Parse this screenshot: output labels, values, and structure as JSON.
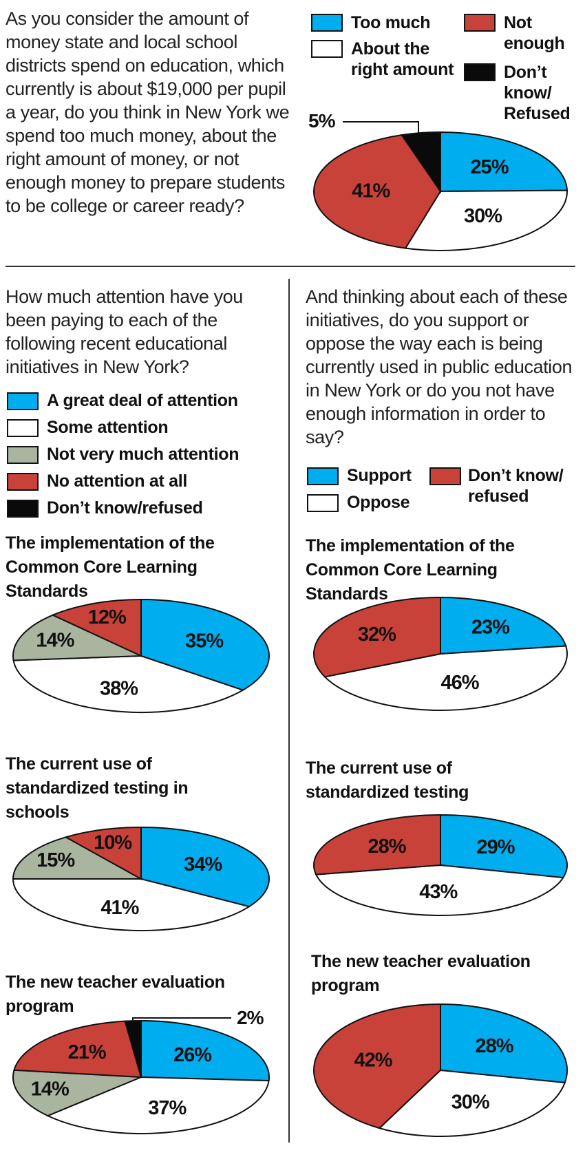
{
  "colors": {
    "blue": "#00aeef",
    "white": "#ffffff",
    "gray": "#aab5a0",
    "red": "#c8423a",
    "black": "#0a0a0a"
  },
  "top": {
    "question": "As you consider the amount of money state and local school districts spend on education, which currently is about $19,000 per pupil a year, do you think in New York we spend too much money, about the right amount of money, or not enough money to prepare students to be college or career ready?",
    "legend": [
      {
        "label": "Too much",
        "color": "blue"
      },
      {
        "label": "About the right amount",
        "color": "white"
      },
      {
        "label": "Not enough",
        "color": "red"
      },
      {
        "label": "Don’t know/ Refused",
        "color": "black"
      }
    ],
    "callout": "5%"
  },
  "left": {
    "question": "How much attention have you been paying to each of the following recent educational initiatives in New York?",
    "legend": [
      {
        "label": "A great deal of attention",
        "color": "blue"
      },
      {
        "label": "Some attention",
        "color": "white"
      },
      {
        "label": "Not very much attention",
        "color": "gray"
      },
      {
        "label": "No attention at all",
        "color": "red"
      },
      {
        "label": "Don’t know/refused",
        "color": "black"
      }
    ],
    "titles": [
      "The implementation of the Common Core Learning Standards",
      "The current use of standardized testing in schools",
      "The new teacher evaluation program"
    ],
    "callout": "2%"
  },
  "right": {
    "question": "And thinking about each of these initiatives, do you support or oppose the way each is being currently used in public education in New York or do you not have enough information in order to say?",
    "legend": [
      {
        "label": "Support",
        "color": "blue"
      },
      {
        "label": "Oppose",
        "color": "white"
      },
      {
        "label": "Don’t know/ refused",
        "color": "red"
      }
    ],
    "titles": [
      "The implementation of the Common Core Learning Standards",
      "The current use of standardized testing",
      "The new teacher evaluation program"
    ]
  },
  "chart_data": [
    {
      "type": "pie",
      "title": "",
      "labels": [
        "Too much",
        "About the right amount",
        "Not enough",
        "Don’t know/ Refused"
      ],
      "values": [
        25,
        30,
        41,
        5
      ],
      "colors": [
        "blue",
        "white",
        "red",
        "black"
      ],
      "display": [
        "25%",
        "30%",
        "41%",
        ""
      ]
    },
    {
      "type": "pie",
      "title": "The implementation of the Common Core Learning Standards",
      "labels": [
        "A great deal of attention",
        "Some attention",
        "Not very much attention",
        "No attention at all"
      ],
      "values": [
        35,
        38,
        14,
        12
      ],
      "colors": [
        "blue",
        "white",
        "gray",
        "red"
      ],
      "display": [
        "35%",
        "38%",
        "14%",
        "12%"
      ]
    },
    {
      "type": "pie",
      "title": "The current use of standardized testing in schools",
      "labels": [
        "A great deal of attention",
        "Some attention",
        "Not very much attention",
        "No attention at all"
      ],
      "values": [
        34,
        41,
        15,
        10
      ],
      "colors": [
        "blue",
        "white",
        "gray",
        "red"
      ],
      "display": [
        "34%",
        "41%",
        "15%",
        "10%"
      ]
    },
    {
      "type": "pie",
      "title": "The new teacher evaluation program",
      "labels": [
        "A great deal of attention",
        "Some attention",
        "Not very much attention",
        "No attention at all",
        "Don’t know/refused"
      ],
      "values": [
        26,
        37,
        14,
        21,
        2
      ],
      "colors": [
        "blue",
        "white",
        "gray",
        "red",
        "black"
      ],
      "display": [
        "26%",
        "37%",
        "14%",
        "21%",
        ""
      ]
    },
    {
      "type": "pie",
      "title": "The implementation of the Common Core Learning Standards",
      "labels": [
        "Support",
        "Oppose",
        "Don’t know/ refused"
      ],
      "values": [
        23,
        46,
        32
      ],
      "colors": [
        "blue",
        "white",
        "red"
      ],
      "display": [
        "23%",
        "46%",
        "32%"
      ]
    },
    {
      "type": "pie",
      "title": "The current use of standardized testing",
      "labels": [
        "Support",
        "Oppose",
        "Don’t know/ refused"
      ],
      "values": [
        29,
        43,
        28
      ],
      "colors": [
        "blue",
        "white",
        "red"
      ],
      "display": [
        "29%",
        "43%",
        "28%"
      ]
    },
    {
      "type": "pie",
      "title": "The new teacher evaluation program",
      "labels": [
        "Support",
        "Oppose",
        "Don’t know/ refused"
      ],
      "values": [
        28,
        30,
        42
      ],
      "colors": [
        "blue",
        "white",
        "red"
      ],
      "display": [
        "28%",
        "30%",
        "42%"
      ]
    }
  ]
}
